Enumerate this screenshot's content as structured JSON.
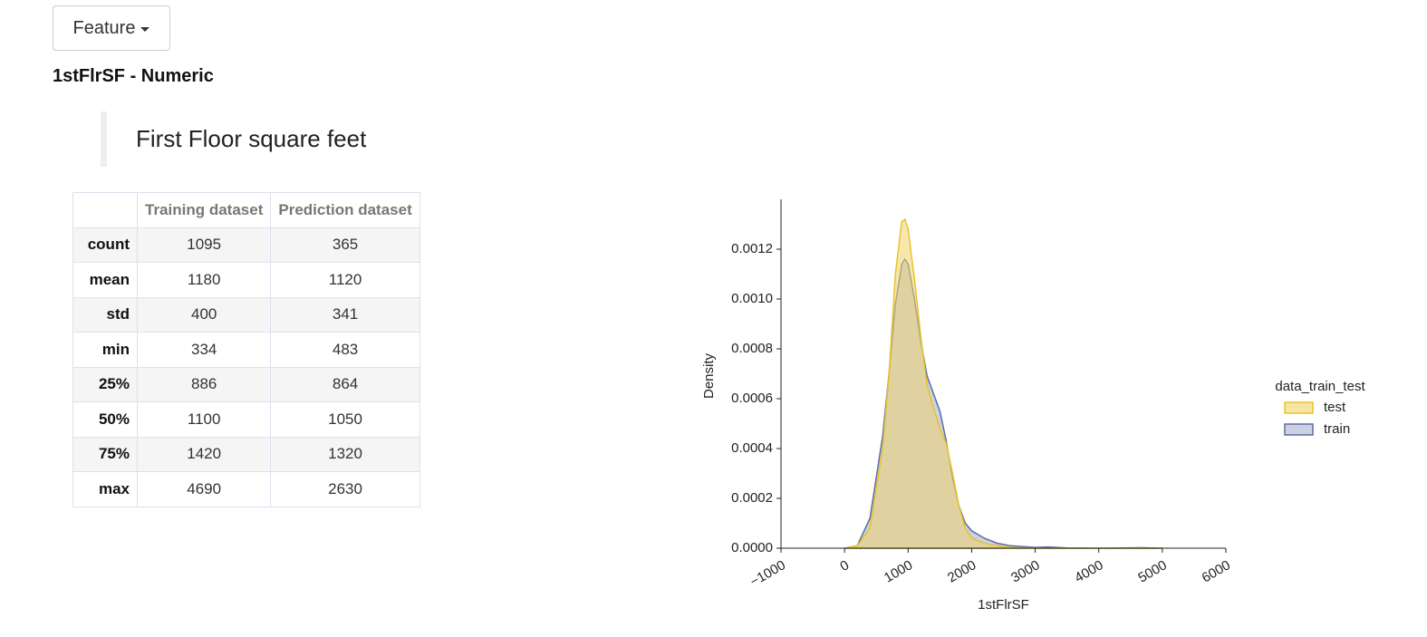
{
  "dropdown": {
    "label": "Feature"
  },
  "heading": "1stFlrSF - Numeric",
  "description": "First Floor square feet",
  "table": {
    "columns": [
      "Training dataset",
      "Prediction dataset"
    ],
    "rows": [
      {
        "label": "count",
        "values": [
          1095,
          365
        ]
      },
      {
        "label": "mean",
        "values": [
          1180,
          1120
        ]
      },
      {
        "label": "std",
        "values": [
          400,
          341
        ]
      },
      {
        "label": "min",
        "values": [
          334,
          483
        ]
      },
      {
        "label": "25%",
        "values": [
          886,
          864
        ]
      },
      {
        "label": "50%",
        "values": [
          1100,
          1050
        ]
      },
      {
        "label": "75%",
        "values": [
          1420,
          1320
        ]
      },
      {
        "label": "max",
        "values": [
          4690,
          2630
        ]
      }
    ]
  },
  "chart_data": {
    "type": "area",
    "xlabel": "1stFlrSF",
    "ylabel": "Density",
    "legend_title": "data_train_test",
    "legend_position": "right",
    "x": [
      0,
      200,
      400,
      600,
      700,
      800,
      900,
      950,
      1000,
      1100,
      1200,
      1300,
      1400,
      1500,
      1600,
      1700,
      1800,
      1900,
      2000,
      2200,
      2400,
      2600,
      3000,
      3200,
      3500,
      4000,
      4700,
      5000
    ],
    "series": [
      {
        "name": "test",
        "color": "#e8c32a",
        "fill": "#f3d46a",
        "values": [
          0,
          1e-05,
          8e-05,
          0.0004,
          0.0007,
          0.0011,
          0.00131,
          0.00132,
          0.00128,
          0.00108,
          0.00085,
          0.00065,
          0.00056,
          0.00048,
          0.00042,
          0.0003,
          0.00017,
          8e-05,
          4e-05,
          2e-05,
          1e-05,
          3e-06,
          0,
          0,
          0,
          0,
          0,
          0
        ]
      },
      {
        "name": "train",
        "color": "#5a6ea0",
        "fill": "#a8b3cf",
        "values": [
          0,
          1e-05,
          0.00012,
          0.00045,
          0.0007,
          0.00098,
          0.00114,
          0.00116,
          0.00114,
          0.001,
          0.00083,
          0.00069,
          0.00062,
          0.00055,
          0.00043,
          0.00028,
          0.00017,
          0.0001,
          7e-05,
          4e-05,
          2e-05,
          1e-05,
          3e-06,
          5e-06,
          1e-06,
          0,
          2e-06,
          0
        ]
      }
    ],
    "xlim": [
      -1000,
      6000
    ],
    "xticks": [
      {
        "value": -1000,
        "label": "−1000"
      },
      0,
      1000,
      2000,
      3000,
      4000,
      5000,
      6000
    ],
    "ylim": [
      0,
      0.0014
    ],
    "yticks": [
      {
        "value": 0,
        "label": "0.0000"
      },
      {
        "value": 0.0002,
        "label": "0.0002"
      },
      {
        "value": 0.0004,
        "label": "0.0004"
      },
      {
        "value": 0.0006,
        "label": "0.0006"
      },
      {
        "value": 0.0008,
        "label": "0.0008"
      },
      {
        "value": 0.001,
        "label": "0.0010"
      },
      {
        "value": 0.0012,
        "label": "0.0012"
      }
    ],
    "grid": false
  }
}
